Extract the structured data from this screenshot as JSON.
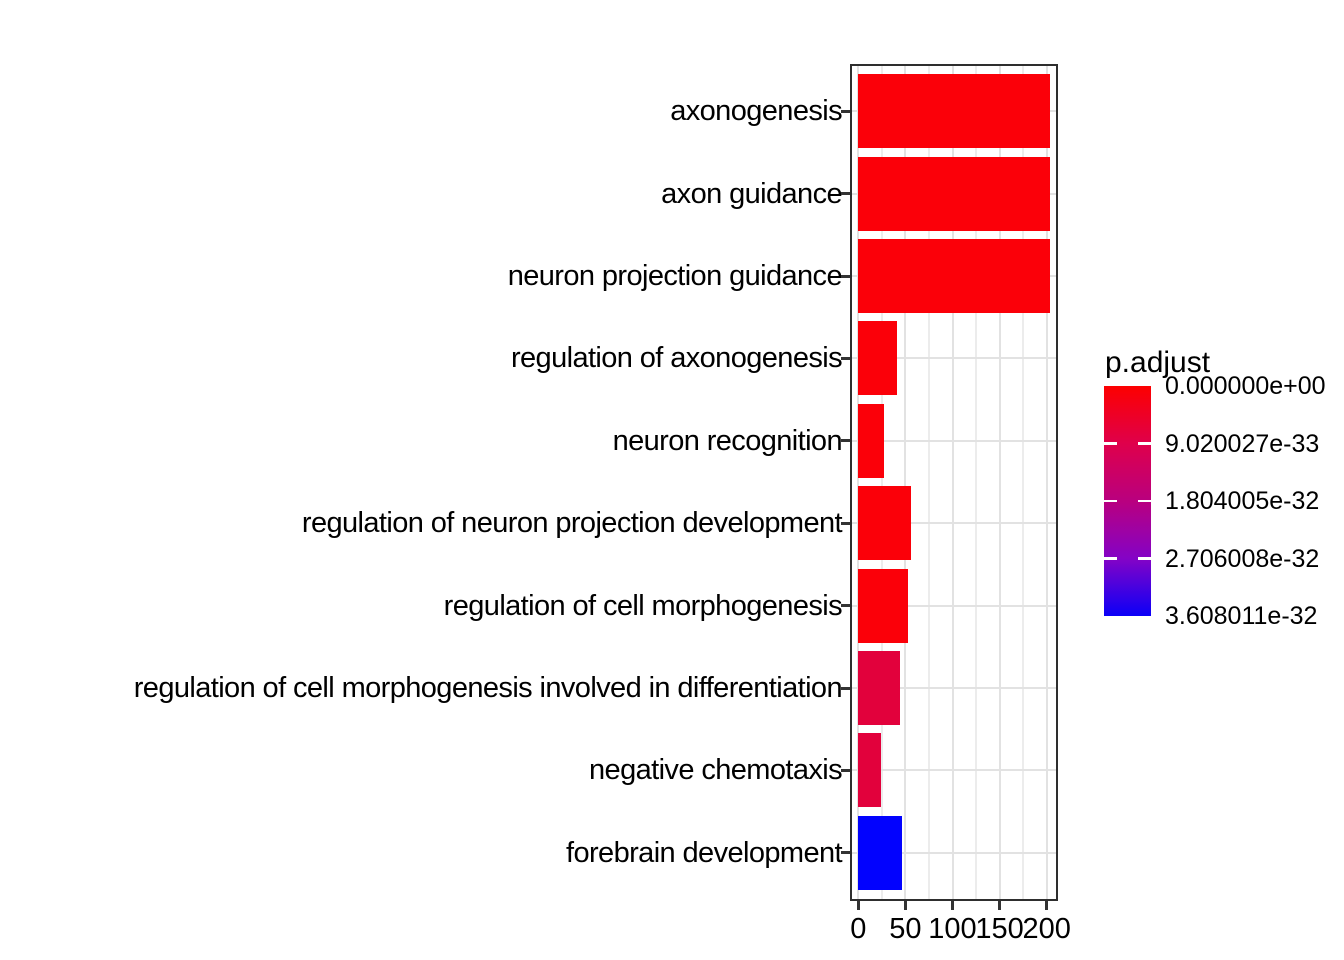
{
  "chart_data": {
    "type": "bar",
    "orientation": "horizontal",
    "title": "",
    "xlabel": "",
    "ylabel": "",
    "categories": [
      "axonogenesis",
      "axon guidance",
      "neuron projection guidance",
      "regulation of axonogenesis",
      "neuron recognition",
      "regulation of neuron projection development",
      "regulation of cell morphogenesis",
      "regulation of cell morphogenesis involved in differentiation",
      "negative chemotaxis",
      "forebrain development"
    ],
    "values": [
      203,
      203,
      203,
      41,
      27,
      56,
      53,
      44,
      24,
      46
    ],
    "bar_colors": [
      "#fb0009",
      "#fb0009",
      "#fb0009",
      "#fb0009",
      "#fb0009",
      "#fb0009",
      "#fb0009",
      "#e2013c",
      "#e2013c",
      "#0202fe"
    ],
    "x_ticks": [
      0,
      50,
      100,
      150,
      200
    ],
    "x_tick_labels": [
      "0",
      "50",
      "100",
      "150",
      "200"
    ],
    "x_minor_ticks": [
      25,
      75,
      125,
      175
    ],
    "xlim": [
      -7,
      210
    ],
    "grid": true,
    "legend": {
      "title": "p.adjust",
      "position": "right",
      "tick_labels": [
        "0.000000e+00",
        "9.020027e-33",
        "1.804005e-32",
        "2.706008e-32",
        "3.608011e-32"
      ],
      "gradient_stops": [
        {
          "pos": 0,
          "color": "#fd0000"
        },
        {
          "pos": 25,
          "color": "#df004b"
        },
        {
          "pos": 50,
          "color": "#b9007f"
        },
        {
          "pos": 75,
          "color": "#8403c6"
        },
        {
          "pos": 100,
          "color": "#0b00f7"
        }
      ]
    }
  }
}
